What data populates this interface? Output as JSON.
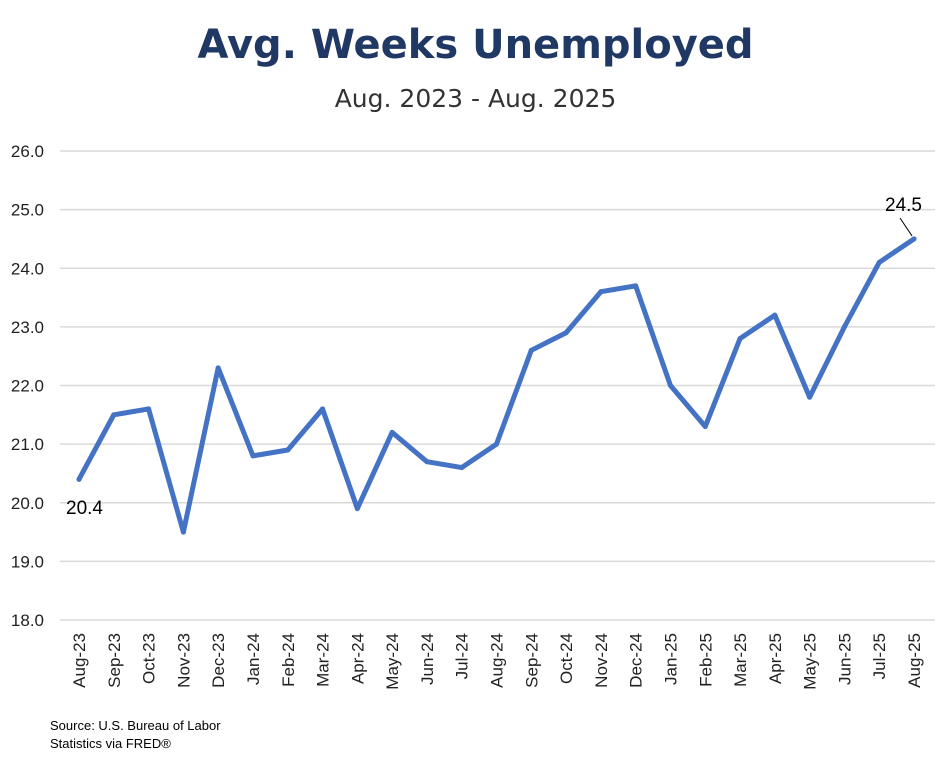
{
  "chart_data": {
    "type": "line",
    "title": "Avg. Weeks Unemployed",
    "subtitle": "Aug. 2023 - Aug. 2025",
    "xlabel": "",
    "ylabel": "",
    "ylim": [
      18.0,
      26.0
    ],
    "yticks": [
      "18.0",
      "19.0",
      "20.0",
      "21.0",
      "22.0",
      "23.0",
      "24.0",
      "25.0",
      "26.0"
    ],
    "grid": true,
    "legend": "none",
    "categories": [
      "Aug-23",
      "Sep-23",
      "Oct-23",
      "Nov-23",
      "Dec-23",
      "Jan-24",
      "Feb-24",
      "Mar-24",
      "Apr-24",
      "May-24",
      "Jun-24",
      "Jul-24",
      "Aug-24",
      "Sep-24",
      "Oct-24",
      "Nov-24",
      "Dec-24",
      "Jan-25",
      "Feb-25",
      "Mar-25",
      "Apr-25",
      "May-25",
      "Jun-25",
      "Jul-25",
      "Aug-25"
    ],
    "series": [
      {
        "values": [
          20.4,
          21.5,
          21.6,
          19.5,
          22.3,
          20.8,
          20.9,
          21.6,
          19.9,
          21.2,
          20.7,
          20.6,
          21.0,
          22.6,
          22.9,
          23.6,
          23.7,
          22.0,
          21.3,
          22.8,
          23.2,
          21.8,
          23.0,
          24.1,
          24.5
        ],
        "color": "#4472c4"
      }
    ],
    "annotations": [
      {
        "index": 0,
        "text": "20.4"
      },
      {
        "index": 24,
        "text": "24.5"
      }
    ]
  },
  "source": {
    "line1": "Source: U.S. Bureau of Labor",
    "line2": "Statistics via FRED®"
  }
}
